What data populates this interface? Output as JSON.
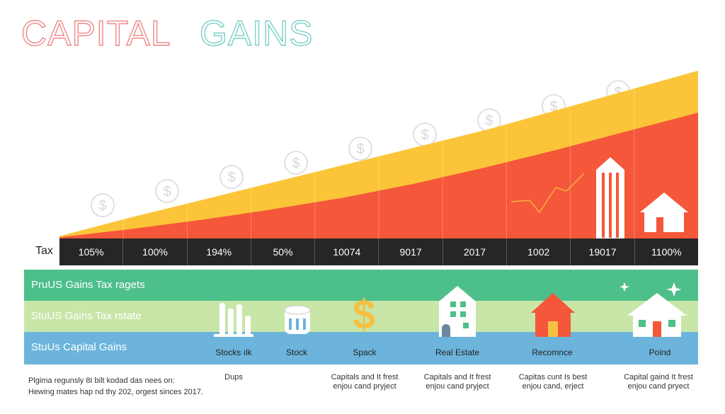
{
  "title": {
    "part1": "CAPITAL",
    "part2": "GAINS"
  },
  "colors": {
    "yellow": "#fcc438",
    "red": "#f4573a",
    "title1": "#f08888",
    "title2": "#7dd0c8",
    "green": "#4dbf8a",
    "lightgreen": "#c8e6a8",
    "blue": "#6cb4dc",
    "dark": "#262626"
  },
  "chart_data": {
    "type": "area",
    "title": "CAPITAL GAINS",
    "row_label": "Tax",
    "categories": [
      "105%",
      "100%",
      "194%",
      "50%",
      "10074",
      "9017",
      "2017",
      "1002",
      "19017",
      "1100%"
    ],
    "series": [
      {
        "values": [
          2,
          18,
          33,
          48,
          63,
          78,
          93,
          110,
          127,
          144
        ],
        "color": "yellow"
      },
      {
        "values": [
          1,
          8,
          16,
          25,
          35,
          47,
          61,
          76,
          92,
          108
        ],
        "color": "red"
      }
    ],
    "ylim": [
      0,
      150
    ],
    "legend": "none",
    "grid": false
  },
  "bands": [
    {
      "label": "PruUS Gains Tax ragets"
    },
    {
      "label": "StuUS Gains Tax rstate"
    },
    {
      "label": "StuUs Capital Gains"
    }
  ],
  "categories_row": [
    {
      "label": "Stocks ılk",
      "desc": "Dups",
      "icon": "bar-chart-icon"
    },
    {
      "label": "Stock",
      "desc": "",
      "icon": "coin-stack-icon"
    },
    {
      "label": "Spack",
      "desc": "Capitals and It frest\nenjou cand pryject",
      "icon": "dollar-icon"
    },
    {
      "label": "Real Estate",
      "desc": "Capitals and It frest\nenjou cand pryject",
      "icon": "building-icon"
    },
    {
      "label": "Recomnce",
      "desc": "Capitas cunt Is best\nenjou cand, erject",
      "icon": "house-icon"
    },
    {
      "label": "Poind",
      "desc": "Capital gaind It frest\nenjou cand pryect",
      "icon": "house-outline-icon"
    }
  ],
  "footnote": {
    "line1": "Plgima regunsly 8I bilt kodad das nees on:",
    "line2": "Hewing mates hap nd thy 202, orgest sinces 2017."
  }
}
